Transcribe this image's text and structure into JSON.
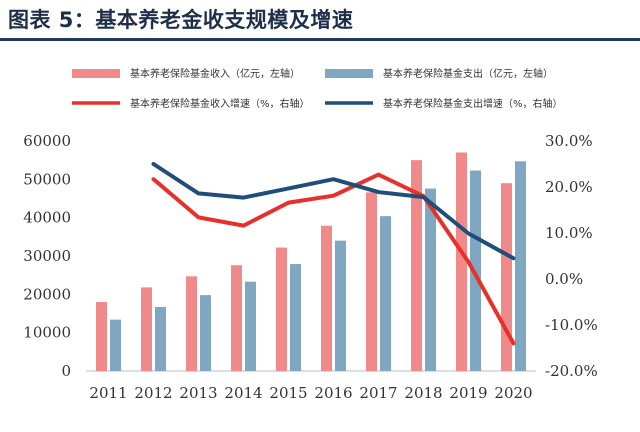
{
  "figure_title": "图表 5：基本养老金收支规模及增速",
  "colors": {
    "income_bar": "#f08a8a",
    "expense_bar": "#7fa7c2",
    "income_line": "#e8302a",
    "expense_line": "#1f4e79",
    "title_rule": "#1f3864"
  },
  "chart_data": {
    "type": "bar",
    "categories": [
      "2011",
      "2012",
      "2013",
      "2014",
      "2015",
      "2016",
      "2017",
      "2018",
      "2019",
      "2020"
    ],
    "series": [
      {
        "name": "基本养老保险基金收入（亿元，左轴）",
        "kind": "bar",
        "axis": "left",
        "values": [
          18000,
          21800,
          24700,
          27600,
          32200,
          37900,
          46600,
          55000,
          57000,
          49000
        ]
      },
      {
        "name": "基本养老保险基金支出（亿元，左轴）",
        "kind": "bar",
        "axis": "left",
        "values": [
          13400,
          16700,
          19800,
          23300,
          27900,
          34000,
          40400,
          47600,
          52300,
          54700
        ]
      },
      {
        "name": "基本养老保险基金收入增速（%，右轴）",
        "kind": "line",
        "axis": "right",
        "values": [
          null,
          21.7,
          13.4,
          11.6,
          16.6,
          18.1,
          22.7,
          18.0,
          3.7,
          -14.0
        ]
      },
      {
        "name": "基本养老保险基金支出增速（%，右轴）",
        "kind": "line",
        "axis": "right",
        "values": [
          null,
          25.0,
          18.6,
          17.7,
          19.7,
          21.7,
          18.9,
          17.8,
          9.9,
          4.5
        ]
      }
    ],
    "left_axis": {
      "ylim": [
        0,
        60000
      ],
      "ticks": [
        "0",
        "10000",
        "20000",
        "30000",
        "40000",
        "50000",
        "60000"
      ]
    },
    "right_axis": {
      "ylim": [
        -20,
        30
      ],
      "ticks": [
        "-20.0%",
        "-10.0%",
        "0.0%",
        "10.0%",
        "20.0%",
        "30.0%"
      ]
    },
    "legend_position": "top",
    "grid": false
  }
}
